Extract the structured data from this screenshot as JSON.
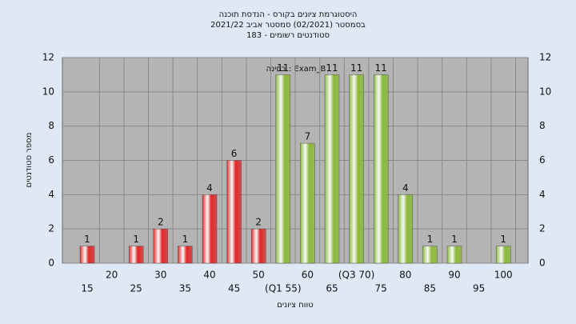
{
  "chart_data": {
    "type": "bar",
    "title": [
      "היסטוגרמת ציונים בקורס - הנדסת תוכנה",
      "בסמסטר  (02/2021)  סמסטר אביב 2021/22",
      "סטודנטים רשומים - 183"
    ],
    "annotation": "בחינה : Exam_B",
    "x_label": "טווח ציונים",
    "y_label": "מספר סטודנטים",
    "categories": [
      "15",
      "20",
      "25",
      "30",
      "35",
      "40",
      "45",
      "50",
      "(Q1 55)",
      "60",
      "65",
      "(Q3 70)",
      "75",
      "80",
      "85",
      "90",
      "95",
      "100"
    ],
    "values": [
      1,
      0,
      1,
      2,
      1,
      4,
      6,
      2,
      11,
      7,
      11,
      11,
      11,
      4,
      1,
      1,
      0,
      1
    ],
    "colors": [
      "#e02828",
      "#e02828",
      "#e02828",
      "#e02828",
      "#e02828",
      "#e02828",
      "#e02828",
      "#e02828",
      "#8cba3a",
      "#8cba3a",
      "#8cba3a",
      "#8cba3a",
      "#8cba3a",
      "#8cba3a",
      "#8cba3a",
      "#8cba3a",
      "#8cba3a",
      "#8cba3a"
    ],
    "ylim": [
      0,
      12
    ],
    "yticks": [
      0,
      2,
      4,
      6,
      8,
      10,
      12
    ],
    "grid": true
  }
}
